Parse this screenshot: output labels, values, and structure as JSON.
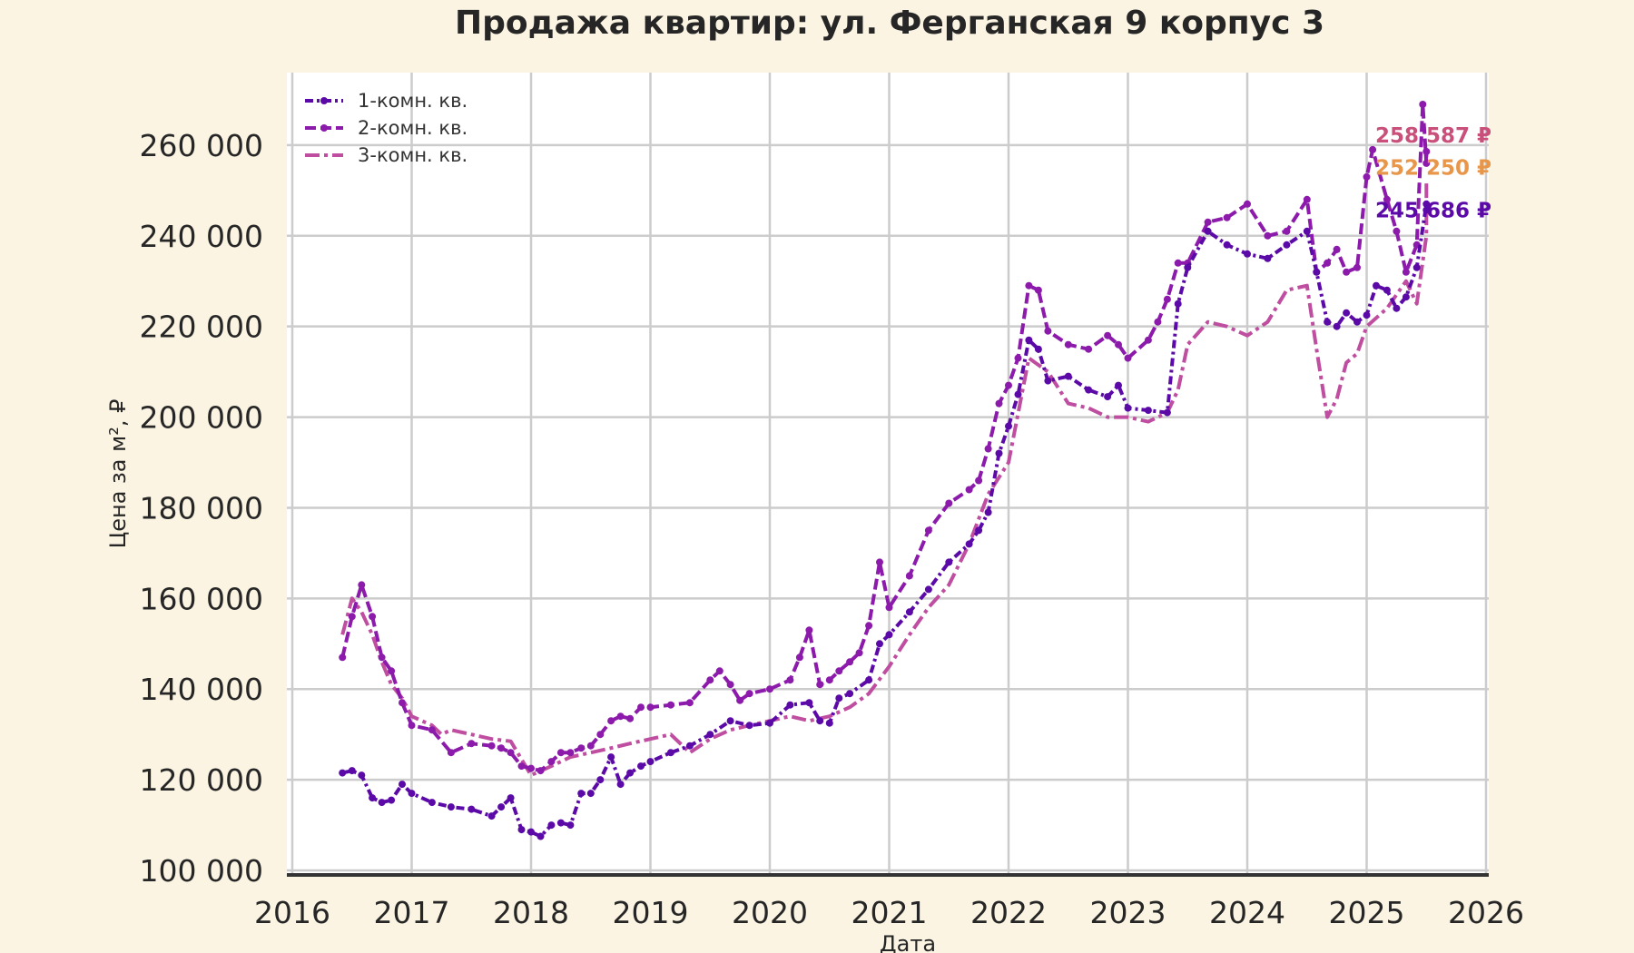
{
  "chart_data": {
    "type": "line",
    "title": "Продажа квартир: ул. Ферганская 9 корпус 3",
    "xlabel": "Дата",
    "ylabel": "Цена за м², ₽",
    "xlim": [
      2016,
      2026
    ],
    "ylim": [
      99000,
      276000
    ],
    "x_ticks": [
      "2016",
      "2017",
      "2018",
      "2019",
      "2020",
      "2021",
      "2022",
      "2023",
      "2024",
      "2025",
      "2026"
    ],
    "y_ticks": [
      "100 000",
      "120 000",
      "140 000",
      "160 000",
      "180 000",
      "200 000",
      "220 000",
      "240 000",
      "260 000"
    ],
    "grid": true,
    "legend_position": "top-left",
    "series": [
      {
        "name": "1-комн. кв.",
        "color": "#5b0aa8",
        "style": "dash-dot-markers",
        "x": [
          2016.42,
          2016.5,
          2016.58,
          2016.67,
          2016.75,
          2016.83,
          2016.92,
          2017.0,
          2017.17,
          2017.33,
          2017.5,
          2017.67,
          2017.75,
          2017.83,
          2017.92,
          2018.0,
          2018.08,
          2018.17,
          2018.25,
          2018.33,
          2018.42,
          2018.5,
          2018.58,
          2018.67,
          2018.75,
          2018.83,
          2018.92,
          2019.0,
          2019.17,
          2019.33,
          2019.5,
          2019.67,
          2019.83,
          2020.0,
          2020.17,
          2020.33,
          2020.42,
          2020.5,
          2020.58,
          2020.67,
          2020.83,
          2020.92,
          2021.0,
          2021.17,
          2021.33,
          2021.5,
          2021.67,
          2021.75,
          2021.83,
          2021.92,
          2022.0,
          2022.08,
          2022.17,
          2022.25,
          2022.33,
          2022.5,
          2022.67,
          2022.83,
          2022.92,
          2023.0,
          2023.17,
          2023.33,
          2023.42,
          2023.5,
          2023.67,
          2023.83,
          2024.0,
          2024.17,
          2024.33,
          2024.5,
          2024.58,
          2024.67,
          2024.75,
          2024.83,
          2024.92,
          2025.0,
          2025.08,
          2025.17,
          2025.25,
          2025.33,
          2025.42,
          2025.5,
          2025.5
        ],
        "values": [
          121500,
          122000,
          121000,
          116000,
          115000,
          115500,
          119000,
          117000,
          115000,
          114000,
          113500,
          112000,
          114000,
          116000,
          109000,
          108500,
          107500,
          110000,
          110500,
          110000,
          117000,
          117000,
          120000,
          125000,
          119000,
          121500,
          123000,
          124000,
          126000,
          127500,
          130000,
          133000,
          132000,
          132500,
          136500,
          137000,
          133000,
          132500,
          138000,
          139000,
          142000,
          150000,
          152000,
          157000,
          162000,
          168000,
          172000,
          175000,
          179000,
          192000,
          198000,
          205000,
          217000,
          215000,
          208000,
          209000,
          206000,
          204500,
          207000,
          202000,
          201500,
          201000,
          225000,
          233000,
          241000,
          238000,
          236000,
          235000,
          238000,
          241000,
          232000,
          221000,
          220000,
          223000,
          221000,
          222500,
          229000,
          228000,
          224000,
          226500,
          233000,
          247000,
          245686
        ]
      },
      {
        "name": "2-комн. кв.",
        "color": "#8c1aab",
        "style": "dashed-markers",
        "x": [
          2016.42,
          2016.5,
          2016.58,
          2016.67,
          2016.75,
          2016.83,
          2016.92,
          2017.0,
          2017.17,
          2017.33,
          2017.5,
          2017.67,
          2017.75,
          2017.83,
          2017.92,
          2018.0,
          2018.08,
          2018.17,
          2018.25,
          2018.33,
          2018.42,
          2018.5,
          2018.58,
          2018.67,
          2018.75,
          2018.83,
          2018.92,
          2019.0,
          2019.17,
          2019.33,
          2019.5,
          2019.58,
          2019.67,
          2019.75,
          2019.83,
          2020.0,
          2020.17,
          2020.25,
          2020.33,
          2020.42,
          2020.5,
          2020.58,
          2020.67,
          2020.75,
          2020.83,
          2020.92,
          2021.0,
          2021.17,
          2021.33,
          2021.5,
          2021.67,
          2021.75,
          2021.83,
          2021.92,
          2022.0,
          2022.08,
          2022.17,
          2022.25,
          2022.33,
          2022.5,
          2022.67,
          2022.83,
          2022.92,
          2023.0,
          2023.17,
          2023.25,
          2023.33,
          2023.42,
          2023.5,
          2023.67,
          2023.83,
          2024.0,
          2024.17,
          2024.33,
          2024.5,
          2024.58,
          2024.67,
          2024.75,
          2024.83,
          2024.92,
          2025.0,
          2025.05,
          2025.17,
          2025.25,
          2025.33,
          2025.42,
          2025.47,
          2025.5,
          2025.5
        ],
        "values": [
          147000,
          156000,
          163000,
          156000,
          147000,
          144000,
          137000,
          132000,
          131000,
          126000,
          128000,
          127500,
          127000,
          126000,
          123000,
          122500,
          122000,
          124000,
          126000,
          126000,
          127000,
          127500,
          130000,
          133000,
          134000,
          133500,
          136000,
          136000,
          136500,
          137000,
          142000,
          144000,
          141000,
          137500,
          139000,
          140000,
          142000,
          147000,
          153000,
          141000,
          142000,
          144000,
          146000,
          148000,
          154000,
          168000,
          158000,
          165000,
          175000,
          181000,
          184000,
          186000,
          193000,
          203000,
          207000,
          213000,
          229000,
          228000,
          219000,
          216000,
          215000,
          218000,
          216000,
          213000,
          217000,
          221000,
          226000,
          234000,
          234000,
          243000,
          244000,
          247000,
          240000,
          241000,
          248000,
          232000,
          234000,
          237000,
          232000,
          233000,
          253000,
          259000,
          248000,
          241000,
          232000,
          238000,
          269000,
          256000,
          258587
        ]
      },
      {
        "name": "3-комн. кв.",
        "color": "#bf4da0",
        "style": "dash-dot",
        "x": [
          2016.42,
          2016.5,
          2016.58,
          2016.67,
          2016.75,
          2016.83,
          2016.92,
          2017.0,
          2017.17,
          2017.25,
          2017.33,
          2017.5,
          2017.67,
          2017.83,
          2018.0,
          2018.17,
          2018.33,
          2018.5,
          2018.67,
          2018.83,
          2019.0,
          2019.17,
          2019.33,
          2019.5,
          2019.67,
          2019.83,
          2020.0,
          2020.17,
          2020.33,
          2020.5,
          2020.67,
          2020.83,
          2021.0,
          2021.17,
          2021.33,
          2021.5,
          2021.67,
          2021.83,
          2022.0,
          2022.17,
          2022.33,
          2022.5,
          2022.67,
          2022.83,
          2023.0,
          2023.17,
          2023.33,
          2023.42,
          2023.5,
          2023.67,
          2023.83,
          2024.0,
          2024.17,
          2024.33,
          2024.5,
          2024.58,
          2024.67,
          2024.75,
          2024.83,
          2024.92,
          2025.0,
          2025.17,
          2025.33,
          2025.42,
          2025.5,
          2025.5
        ],
        "values": [
          152000,
          160000,
          157000,
          152000,
          146000,
          141000,
          138000,
          134000,
          132000,
          130000,
          131000,
          130000,
          129000,
          128500,
          121000,
          123000,
          125000,
          126000,
          127000,
          128000,
          129000,
          130000,
          126000,
          129000,
          131000,
          132000,
          133000,
          134000,
          133000,
          134000,
          136000,
          139000,
          145000,
          152000,
          158000,
          163000,
          172000,
          183000,
          190000,
          213000,
          210000,
          203000,
          202000,
          200000,
          200000,
          199000,
          201000,
          206000,
          216000,
          221000,
          220000,
          218000,
          221000,
          228000,
          229000,
          215000,
          200000,
          204000,
          212000,
          214000,
          220000,
          224000,
          230000,
          225000,
          240000,
          252250
        ]
      }
    ],
    "end_labels": [
      {
        "text": "258 587 ₽",
        "value": 258587,
        "color": "#c9507a"
      },
      {
        "text": "252 250 ₽",
        "value": 252250,
        "color": "#e8964a"
      },
      {
        "text": "245 686 ₽",
        "value": 245686,
        "color": "#5b0aa8"
      }
    ]
  }
}
